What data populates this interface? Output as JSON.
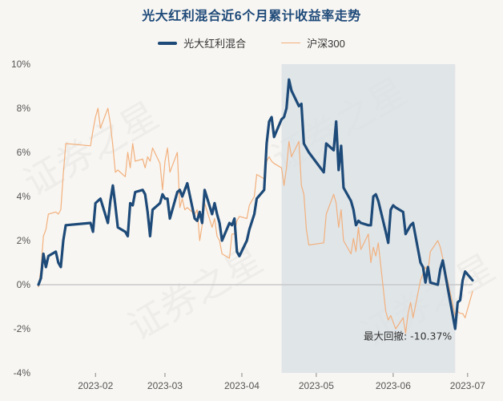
{
  "title": "光大红利混合近6个月累计收益率走势",
  "colors": {
    "fund": "#1d4a78",
    "index": "#f2b07d",
    "drawdown_fill": "#d8dfe4",
    "zero_line": "#c9c9c9",
    "axis_text": "#555555"
  },
  "annotation": {
    "text": "最大回撤: -10.37%"
  },
  "chart_data": {
    "type": "line",
    "title": "光大红利混合近6个月累计收益率走势",
    "xlabel": "",
    "ylabel": "",
    "x_range": [
      "2023-01-09",
      "2023-07-03"
    ],
    "ylim": [
      -4,
      10
    ],
    "yticks": [
      -4,
      -2,
      0,
      2,
      4,
      6,
      8,
      10
    ],
    "ytick_labels": [
      "-4%",
      "-2%",
      "0%",
      "2%",
      "4%",
      "6%",
      "8%",
      "10%"
    ],
    "xticks": [
      "2023-02-01",
      "2023-03-01",
      "2023-04-01",
      "2023-05-01",
      "2023-06-01",
      "2023-07-01"
    ],
    "xtick_labels": [
      "2023-02",
      "2023-03",
      "2023-04",
      "2023-05",
      "2023-06",
      "2023-07"
    ],
    "legend": "top-center",
    "grid": false,
    "max_drawdown": {
      "value": -10.37,
      "start": "2023-04-17",
      "end": "2023-06-26"
    },
    "series": [
      {
        "name": "光大红利混合",
        "points": [
          [
            "2023-01-09",
            0.0
          ],
          [
            "2023-01-10",
            0.3
          ],
          [
            "2023-01-11",
            1.4
          ],
          [
            "2023-01-12",
            0.8
          ],
          [
            "2023-01-13",
            1.3
          ],
          [
            "2023-01-16",
            1.5
          ],
          [
            "2023-01-17",
            1.0
          ],
          [
            "2023-01-18",
            0.8
          ],
          [
            "2023-01-19",
            2.0
          ],
          [
            "2023-01-20",
            2.7
          ],
          [
            "2023-01-30",
            2.8
          ],
          [
            "2023-01-31",
            2.4
          ],
          [
            "2023-02-01",
            3.7
          ],
          [
            "2023-02-02",
            3.8
          ],
          [
            "2023-02-03",
            3.9
          ],
          [
            "2023-02-06",
            2.8
          ],
          [
            "2023-02-07",
            3.8
          ],
          [
            "2023-02-08",
            4.5
          ],
          [
            "2023-02-09",
            3.6
          ],
          [
            "2023-02-10",
            2.6
          ],
          [
            "2023-02-13",
            2.4
          ],
          [
            "2023-02-14",
            2.2
          ],
          [
            "2023-02-15",
            3.7
          ],
          [
            "2023-02-16",
            3.6
          ],
          [
            "2023-02-17",
            4.2
          ],
          [
            "2023-02-20",
            4.3
          ],
          [
            "2023-02-21",
            4.1
          ],
          [
            "2023-02-22",
            3.3
          ],
          [
            "2023-02-23",
            2.2
          ],
          [
            "2023-02-24",
            3.4
          ],
          [
            "2023-02-27",
            3.7
          ],
          [
            "2023-02-28",
            4.1
          ],
          [
            "2023-03-01",
            3.9
          ],
          [
            "2023-03-02",
            3.9
          ],
          [
            "2023-03-03",
            3.0
          ],
          [
            "2023-03-06",
            4.2
          ],
          [
            "2023-03-07",
            4.3
          ],
          [
            "2023-03-08",
            4.0
          ],
          [
            "2023-03-09",
            4.3
          ],
          [
            "2023-03-10",
            4.6
          ],
          [
            "2023-03-13",
            3.0
          ],
          [
            "2023-03-14",
            2.9
          ],
          [
            "2023-03-15",
            3.3
          ],
          [
            "2023-03-16",
            2.8
          ],
          [
            "2023-03-17",
            4.3
          ],
          [
            "2023-03-20",
            3.2
          ],
          [
            "2023-03-21",
            3.7
          ],
          [
            "2023-03-22",
            3.2
          ],
          [
            "2023-03-23",
            2.8
          ],
          [
            "2023-03-24",
            2.0
          ],
          [
            "2023-03-27",
            2.8
          ],
          [
            "2023-03-28",
            2.7
          ],
          [
            "2023-03-29",
            3.0
          ],
          [
            "2023-03-30",
            1.5
          ],
          [
            "2023-03-31",
            1.3
          ],
          [
            "2023-04-03",
            2.0
          ],
          [
            "2023-04-04",
            2.5
          ],
          [
            "2023-04-06",
            3.2
          ],
          [
            "2023-04-07",
            3.9
          ],
          [
            "2023-04-10",
            4.3
          ],
          [
            "2023-04-11",
            6.4
          ],
          [
            "2023-04-12",
            7.4
          ],
          [
            "2023-04-13",
            7.6
          ],
          [
            "2023-04-14",
            6.7
          ],
          [
            "2023-04-17",
            7.5
          ],
          [
            "2023-04-18",
            7.6
          ],
          [
            "2023-04-19",
            8.0
          ],
          [
            "2023-04-20",
            9.3
          ],
          [
            "2023-04-21",
            8.8
          ],
          [
            "2023-04-24",
            8.1
          ],
          [
            "2023-04-25",
            8.2
          ],
          [
            "2023-04-26",
            6.4
          ],
          [
            "2023-04-27",
            6.2
          ],
          [
            "2023-04-28",
            6.0
          ],
          [
            "2023-05-04",
            5.1
          ],
          [
            "2023-05-05",
            6.4
          ],
          [
            "2023-05-08",
            6.1
          ],
          [
            "2023-05-09",
            7.4
          ],
          [
            "2023-05-10",
            5.2
          ],
          [
            "2023-05-11",
            6.3
          ],
          [
            "2023-05-12",
            4.4
          ],
          [
            "2023-05-15",
            3.8
          ],
          [
            "2023-05-16",
            3.4
          ],
          [
            "2023-05-17",
            2.7
          ],
          [
            "2023-05-18",
            2.9
          ],
          [
            "2023-05-19",
            2.8
          ],
          [
            "2023-05-22",
            2.7
          ],
          [
            "2023-05-23",
            2.7
          ],
          [
            "2023-05-24",
            4.0
          ],
          [
            "2023-05-25",
            4.1
          ],
          [
            "2023-05-26",
            3.8
          ],
          [
            "2023-05-29",
            2.4
          ],
          [
            "2023-05-30",
            1.9
          ],
          [
            "2023-05-31",
            3.4
          ],
          [
            "2023-06-01",
            3.6
          ],
          [
            "2023-06-02",
            3.5
          ],
          [
            "2023-06-05",
            3.3
          ],
          [
            "2023-06-06",
            2.3
          ],
          [
            "2023-06-07",
            2.5
          ],
          [
            "2023-06-08",
            2.7
          ],
          [
            "2023-06-09",
            2.8
          ],
          [
            "2023-06-12",
            1.0
          ],
          [
            "2023-06-13",
            0.8
          ],
          [
            "2023-06-14",
            0.1
          ],
          [
            "2023-06-15",
            0.8
          ],
          [
            "2023-06-16",
            0.1
          ],
          [
            "2023-06-19",
            0.0
          ],
          [
            "2023-06-20",
            0.7
          ],
          [
            "2023-06-21",
            1.1
          ],
          [
            "2023-06-26",
            -2.0
          ],
          [
            "2023-06-27",
            -0.8
          ],
          [
            "2023-06-28",
            -0.7
          ],
          [
            "2023-06-29",
            0.2
          ],
          [
            "2023-06-30",
            0.6
          ],
          [
            "2023-07-03",
            0.2
          ]
        ]
      },
      {
        "name": "沪深300",
        "points": [
          [
            "2023-01-09",
            -0.1
          ],
          [
            "2023-01-10",
            0.7
          ],
          [
            "2023-01-11",
            2.2
          ],
          [
            "2023-01-12",
            2.5
          ],
          [
            "2023-01-13",
            3.2
          ],
          [
            "2023-01-16",
            3.3
          ],
          [
            "2023-01-17",
            3.2
          ],
          [
            "2023-01-18",
            3.4
          ],
          [
            "2023-01-19",
            5.0
          ],
          [
            "2023-01-20",
            6.4
          ],
          [
            "2023-01-30",
            6.3
          ],
          [
            "2023-01-31",
            7.0
          ],
          [
            "2023-02-01",
            7.6
          ],
          [
            "2023-02-02",
            8.0
          ],
          [
            "2023-02-03",
            7.1
          ],
          [
            "2023-02-06",
            8.0
          ],
          [
            "2023-02-07",
            7.3
          ],
          [
            "2023-02-08",
            6.3
          ],
          [
            "2023-02-09",
            5.1
          ],
          [
            "2023-02-10",
            5.2
          ],
          [
            "2023-02-13",
            4.9
          ],
          [
            "2023-02-14",
            6.0
          ],
          [
            "2023-02-15",
            5.3
          ],
          [
            "2023-02-16",
            6.4
          ],
          [
            "2023-02-17",
            5.6
          ],
          [
            "2023-02-20",
            5.7
          ],
          [
            "2023-02-21",
            5.3
          ],
          [
            "2023-02-22",
            5.8
          ],
          [
            "2023-02-23",
            5.6
          ],
          [
            "2023-02-24",
            6.2
          ],
          [
            "2023-02-27",
            5.5
          ],
          [
            "2023-02-28",
            4.3
          ],
          [
            "2023-03-01",
            5.6
          ],
          [
            "2023-03-02",
            6.2
          ],
          [
            "2023-03-03",
            5.1
          ],
          [
            "2023-03-06",
            6.0
          ],
          [
            "2023-03-07",
            3.5
          ],
          [
            "2023-03-08",
            3.9
          ],
          [
            "2023-03-09",
            3.4
          ],
          [
            "2023-03-10",
            3.5
          ],
          [
            "2023-03-13",
            3.2
          ],
          [
            "2023-03-14",
            3.4
          ],
          [
            "2023-03-15",
            2.0
          ],
          [
            "2023-03-16",
            2.7
          ],
          [
            "2023-03-17",
            3.7
          ],
          [
            "2023-03-20",
            2.6
          ],
          [
            "2023-03-21",
            3.0
          ],
          [
            "2023-03-22",
            2.2
          ],
          [
            "2023-03-23",
            2.0
          ],
          [
            "2023-03-24",
            1.4
          ],
          [
            "2023-03-27",
            1.2
          ],
          [
            "2023-03-28",
            2.3
          ],
          [
            "2023-03-29",
            2.3
          ],
          [
            "2023-03-30",
            2.9
          ],
          [
            "2023-03-31",
            3.1
          ],
          [
            "2023-04-03",
            3.0
          ],
          [
            "2023-04-04",
            3.6
          ],
          [
            "2023-04-06",
            4.0
          ],
          [
            "2023-04-07",
            5.0
          ],
          [
            "2023-04-10",
            4.8
          ],
          [
            "2023-04-11",
            5.6
          ],
          [
            "2023-04-12",
            5.8
          ],
          [
            "2023-04-13",
            5.6
          ],
          [
            "2023-04-14",
            5.5
          ],
          [
            "2023-04-17",
            5.3
          ],
          [
            "2023-04-18",
            4.5
          ],
          [
            "2023-04-19",
            5.3
          ],
          [
            "2023-04-20",
            6.5
          ],
          [
            "2023-04-21",
            5.8
          ],
          [
            "2023-04-24",
            6.5
          ],
          [
            "2023-04-25",
            4.5
          ],
          [
            "2023-04-26",
            4.1
          ],
          [
            "2023-04-27",
            2.5
          ],
          [
            "2023-04-28",
            1.8
          ],
          [
            "2023-05-04",
            1.9
          ],
          [
            "2023-05-05",
            3.2
          ],
          [
            "2023-05-08",
            4.1
          ],
          [
            "2023-05-09",
            3.7
          ],
          [
            "2023-05-10",
            2.6
          ],
          [
            "2023-05-11",
            3.4
          ],
          [
            "2023-05-12",
            2.0
          ],
          [
            "2023-05-15",
            1.4
          ],
          [
            "2023-05-16",
            2.1
          ],
          [
            "2023-05-17",
            1.5
          ],
          [
            "2023-05-18",
            2.6
          ],
          [
            "2023-05-19",
            1.6
          ],
          [
            "2023-05-22",
            2.3
          ],
          [
            "2023-05-23",
            1.0
          ],
          [
            "2023-05-24",
            1.7
          ],
          [
            "2023-05-25",
            1.3
          ],
          [
            "2023-05-26",
            1.9
          ],
          [
            "2023-05-29",
            -1.2
          ],
          [
            "2023-05-30",
            -1.6
          ],
          [
            "2023-05-31",
            -1.4
          ],
          [
            "2023-06-01",
            -1.7
          ],
          [
            "2023-06-02",
            -2.0
          ],
          [
            "2023-06-05",
            -1.5
          ],
          [
            "2023-06-06",
            -2.2
          ],
          [
            "2023-06-07",
            -1.3
          ],
          [
            "2023-06-08",
            -0.8
          ],
          [
            "2023-06-09",
            -1.5
          ],
          [
            "2023-06-12",
            0.2
          ],
          [
            "2023-06-13",
            0.5
          ],
          [
            "2023-06-14",
            0.8
          ],
          [
            "2023-06-15",
            0.6
          ],
          [
            "2023-06-16",
            1.5
          ],
          [
            "2023-06-19",
            2.0
          ],
          [
            "2023-06-20",
            1.7
          ],
          [
            "2023-06-21",
            1.2
          ],
          [
            "2023-06-26",
            -1.4
          ],
          [
            "2023-06-27",
            -1.2
          ],
          [
            "2023-06-28",
            -1.3
          ],
          [
            "2023-06-29",
            -1.3
          ],
          [
            "2023-06-30",
            -1.5
          ],
          [
            "2023-07-03",
            -0.3
          ]
        ]
      }
    ]
  }
}
